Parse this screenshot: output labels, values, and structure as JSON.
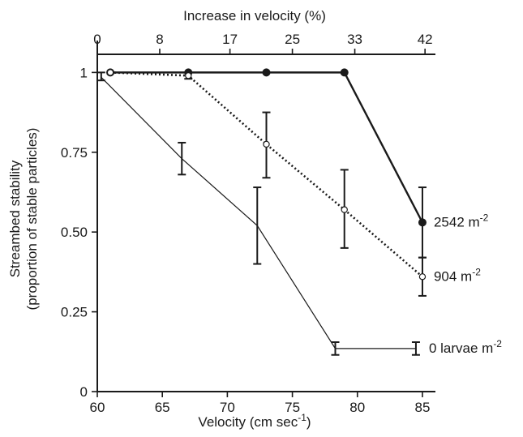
{
  "chart_data": {
    "type": "line",
    "x_axis": {
      "label": "Velocity (cm sec",
      "label_sup": "-1",
      "label_end": ")",
      "ticks": [
        60,
        65,
        70,
        75,
        80,
        85
      ],
      "range": [
        60,
        86
      ]
    },
    "x2_axis": {
      "label": "Increase in velocity (%)",
      "ticks": [
        {
          "velocity": 60,
          "label": "0"
        },
        {
          "velocity": 64.8,
          "label": "8"
        },
        {
          "velocity": 70.2,
          "label": "17"
        },
        {
          "velocity": 75,
          "label": "25"
        },
        {
          "velocity": 79.8,
          "label": "33"
        },
        {
          "velocity": 85.2,
          "label": "42"
        }
      ]
    },
    "y_axis": {
      "label_line1": "Streambed stability",
      "label_line2": "(proportion of stable particles)",
      "ticks": [
        {
          "value": 0,
          "label": "0"
        },
        {
          "value": 0.25,
          "label": "0.25"
        },
        {
          "value": 0.5,
          "label": "0.50"
        },
        {
          "value": 0.75,
          "label": "0.75"
        },
        {
          "value": 1,
          "label": "1"
        }
      ],
      "range": [
        0,
        1.1
      ]
    },
    "series": [
      {
        "name": "2542",
        "unit": "m",
        "unit_sup": "-2",
        "line_style": "solid-thick",
        "marker": "filled-circle",
        "points": [
          {
            "x": 61,
            "y": 1.0
          },
          {
            "x": 67,
            "y": 1.0
          },
          {
            "x": 73,
            "y": 1.0
          },
          {
            "x": 79,
            "y": 1.0
          },
          {
            "x": 85,
            "y": 0.53,
            "err_low": 0.42,
            "err_high": 0.64
          }
        ]
      },
      {
        "name": "904",
        "unit": "m",
        "unit_sup": "-2",
        "line_style": "dotted",
        "marker": "open-circle",
        "points": [
          {
            "x": 61,
            "y": 1.0
          },
          {
            "x": 67,
            "y": 0.99,
            "err_low": 0.98,
            "err_high": 1.0
          },
          {
            "x": 73,
            "y": 0.775,
            "err_low": 0.67,
            "err_high": 0.875
          },
          {
            "x": 79,
            "y": 0.57,
            "err_low": 0.45,
            "err_high": 0.695
          },
          {
            "x": 85,
            "y": 0.36,
            "err_low": 0.3,
            "err_high": 0.42
          }
        ]
      },
      {
        "name": "0 larvae",
        "unit": "m",
        "unit_sup": "-2",
        "line_style": "solid-thin",
        "marker": "none",
        "points": [
          {
            "x": 60.3,
            "y": 0.985,
            "err_low": 0.975,
            "err_high": 1.0
          },
          {
            "x": 66.5,
            "y": 0.73,
            "err_low": 0.68,
            "err_high": 0.78
          },
          {
            "x": 72.3,
            "y": 0.52,
            "err_low": 0.4,
            "err_high": 0.64
          },
          {
            "x": 78.3,
            "y": 0.135,
            "err_low": 0.115,
            "err_high": 0.155
          },
          {
            "x": 84.5,
            "y": 0.135,
            "err_low": 0.115,
            "err_high": 0.155
          }
        ]
      }
    ],
    "grid": false,
    "legend": "inline labels at right end of each series"
  }
}
